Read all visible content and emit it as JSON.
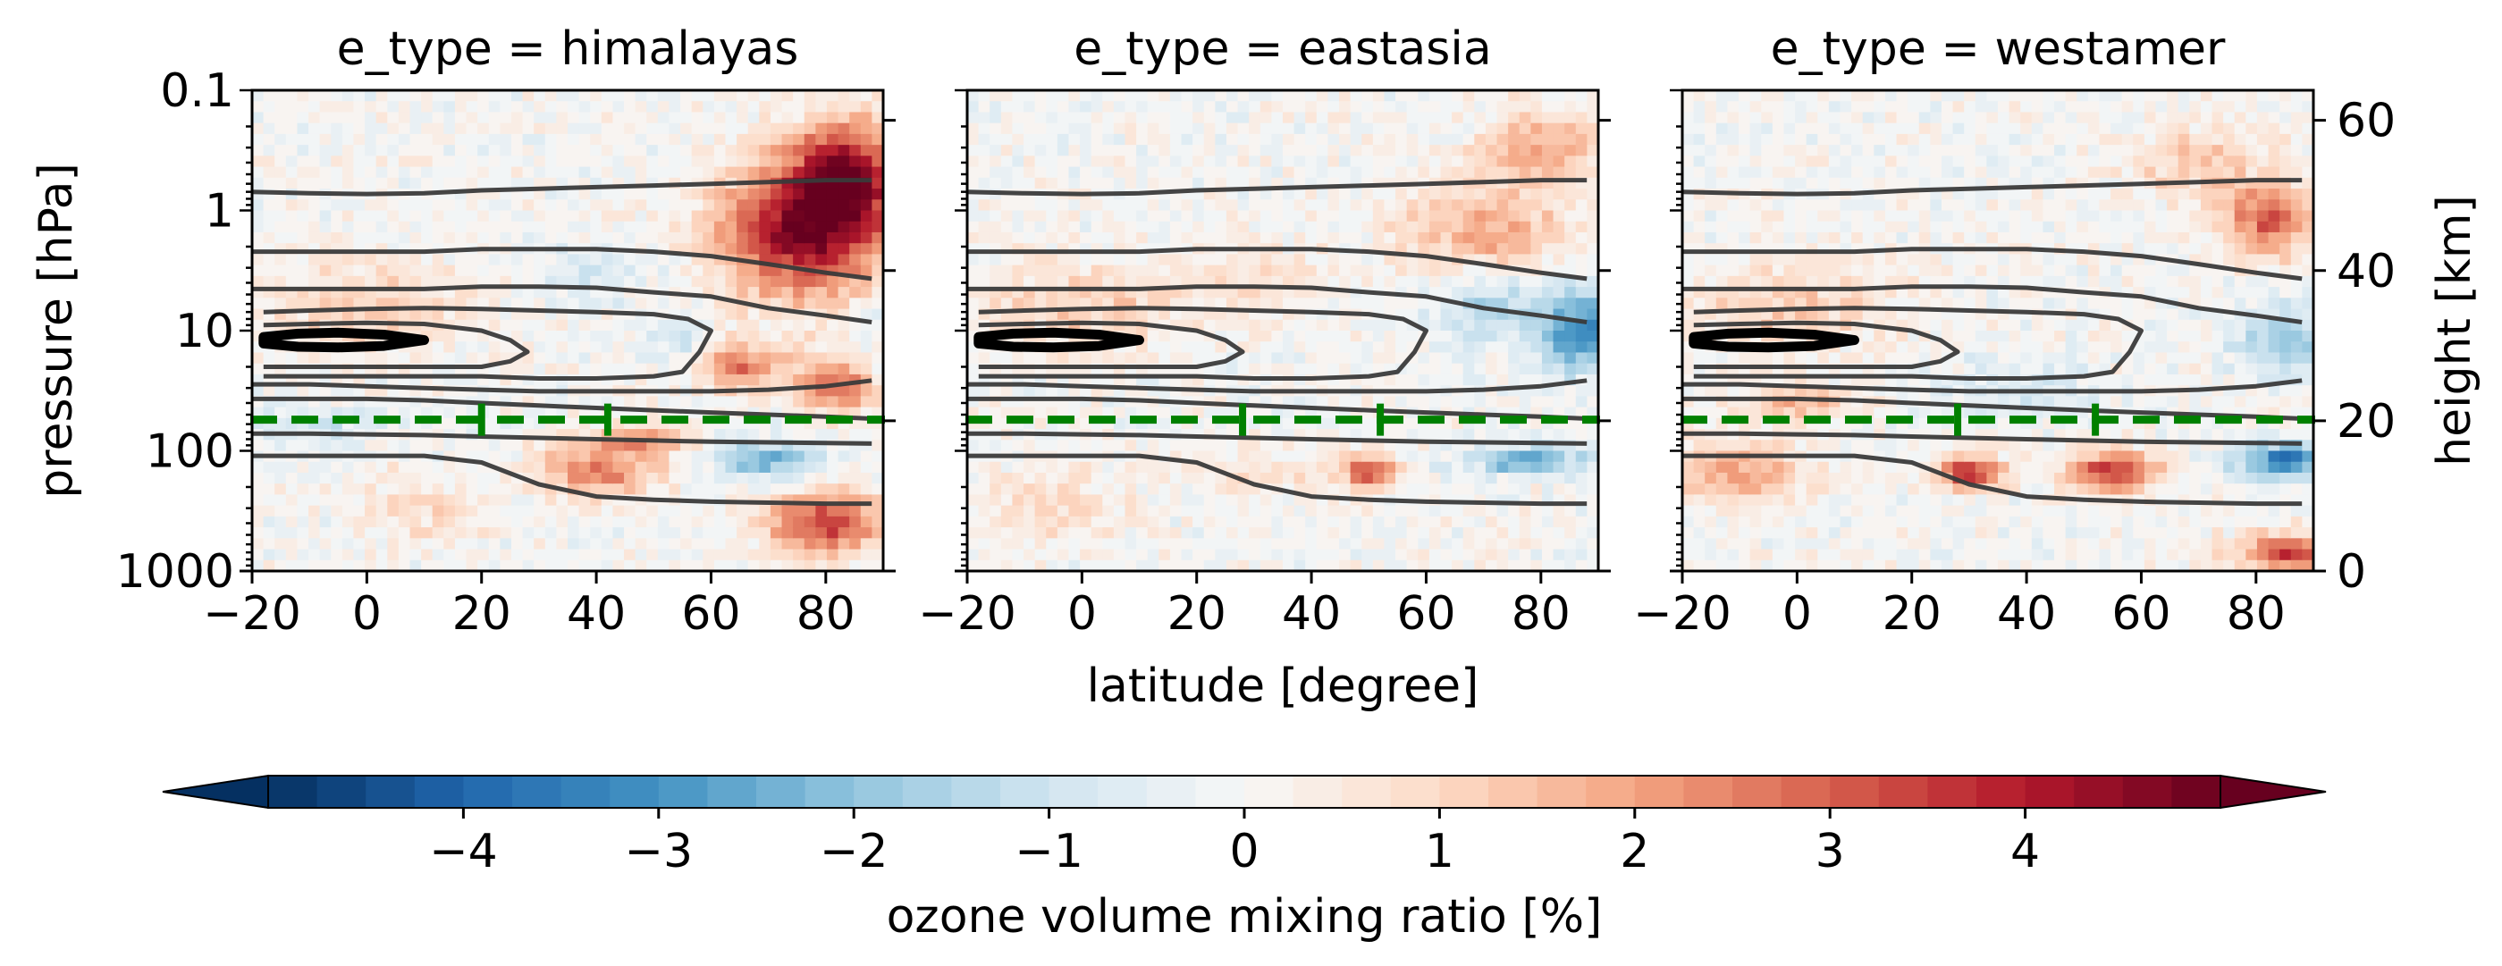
{
  "chart_data": {
    "type": "heatmap",
    "panels": [
      {
        "title": "e_type = himalayas",
        "tropopause_markers_lat": [
          20,
          42
        ],
        "hotspots": [
          {
            "lat": 76,
            "p": 1.5,
            "value": 4.5,
            "sx": 14,
            "sy": 0.55
          },
          {
            "lat": 84,
            "p": 0.5,
            "value": 3.8,
            "sx": 10,
            "sy": 0.45
          },
          {
            "lat": 65,
            "p": 20,
            "value": 2.6,
            "sx": 8,
            "sy": 0.2
          },
          {
            "lat": 82,
            "p": 30,
            "value": 2.8,
            "sx": 7,
            "sy": 0.22
          },
          {
            "lat": 40,
            "p": 150,
            "value": 2.5,
            "sx": 10,
            "sy": 0.22
          },
          {
            "lat": 48,
            "p": 80,
            "value": 2.0,
            "sx": 8,
            "sy": 0.15
          },
          {
            "lat": 70,
            "p": 120,
            "value": -2.4,
            "sx": 9,
            "sy": 0.15
          },
          {
            "lat": 80,
            "p": 400,
            "value": 3.5,
            "sx": 10,
            "sy": 0.25
          },
          {
            "lat": 0,
            "p": 6,
            "value": 1.2,
            "sx": 18,
            "sy": 0.35
          },
          {
            "lat": 38,
            "p": 3,
            "value": -0.8,
            "sx": 10,
            "sy": 0.25
          },
          {
            "lat": 55,
            "p": 12,
            "value": -1.0,
            "sx": 6,
            "sy": 0.2
          },
          {
            "lat": -10,
            "p": 60,
            "value": -1.0,
            "sx": 12,
            "sy": 0.15
          },
          {
            "lat": 88,
            "p": 8,
            "value": -0.9,
            "sx": 4,
            "sy": 0.2
          },
          {
            "lat": 10,
            "p": 300,
            "value": 0.8,
            "sx": 12,
            "sy": 0.3
          }
        ]
      },
      {
        "title": "e_type = eastasia",
        "tropopause_markers_lat": [
          28,
          52
        ],
        "hotspots": [
          {
            "lat": 70,
            "p": 1.5,
            "value": 2.0,
            "sx": 14,
            "sy": 0.4
          },
          {
            "lat": 80,
            "p": 0.3,
            "value": 1.8,
            "sx": 10,
            "sy": 0.3
          },
          {
            "lat": 87,
            "p": 10,
            "value": -3.2,
            "sx": 7,
            "sy": 0.35
          },
          {
            "lat": 70,
            "p": 6,
            "value": -1.6,
            "sx": 10,
            "sy": 0.35
          },
          {
            "lat": 50,
            "p": 150,
            "value": 3.0,
            "sx": 5,
            "sy": 0.15
          },
          {
            "lat": 78,
            "p": 120,
            "value": -2.8,
            "sx": 10,
            "sy": 0.12
          },
          {
            "lat": 30,
            "p": 150,
            "value": 0.8,
            "sx": 12,
            "sy": 0.2
          },
          {
            "lat": -5,
            "p": 300,
            "value": 0.8,
            "sx": 14,
            "sy": 0.3
          },
          {
            "lat": 0,
            "p": 6,
            "value": 1.2,
            "sx": 18,
            "sy": 0.35
          },
          {
            "lat": 30,
            "p": 4,
            "value": 0.8,
            "sx": 12,
            "sy": 0.3
          }
        ]
      },
      {
        "title": "e_type = westamer",
        "tropopause_markers_lat": [
          28,
          52
        ],
        "hotspots": [
          {
            "lat": 82,
            "p": 1.2,
            "value": 3.0,
            "sx": 8,
            "sy": 0.3
          },
          {
            "lat": 70,
            "p": 0.4,
            "value": 1.2,
            "sx": 12,
            "sy": 0.3
          },
          {
            "lat": 85,
            "p": 12,
            "value": -2.0,
            "sx": 8,
            "sy": 0.3
          },
          {
            "lat": 30,
            "p": 150,
            "value": 3.6,
            "sx": 6,
            "sy": 0.15
          },
          {
            "lat": 55,
            "p": 150,
            "value": 3.4,
            "sx": 8,
            "sy": 0.18
          },
          {
            "lat": 85,
            "p": 120,
            "value": -3.5,
            "sx": 8,
            "sy": 0.15
          },
          {
            "lat": 85,
            "p": 700,
            "value": 3.5,
            "sx": 8,
            "sy": 0.15
          },
          {
            "lat": -10,
            "p": 150,
            "value": 2.0,
            "sx": 12,
            "sy": 0.25
          },
          {
            "lat": 0,
            "p": 40,
            "value": 1.8,
            "sx": 10,
            "sy": 0.15
          },
          {
            "lat": 0,
            "p": 6,
            "value": 1.2,
            "sx": 18,
            "sy": 0.35
          },
          {
            "lat": 40,
            "p": 30,
            "value": -0.8,
            "sx": 14,
            "sy": 0.25
          }
        ]
      }
    ],
    "xlabel": "latitude [degree]",
    "ylabel": "pressure [hPa]",
    "ylabel_right": "height [km]",
    "colorbar_label": "ozone volume mixing ratio [%]",
    "xticks": [
      -20,
      0,
      20,
      40,
      60,
      80
    ],
    "xtick_labels": [
      "−20",
      "0",
      "20",
      "40",
      "60",
      "80"
    ],
    "xlim": [
      -20,
      90
    ],
    "yticks": [
      0.1,
      1,
      10,
      100,
      1000
    ],
    "ytick_labels": [
      "0.1",
      "1",
      "10",
      "100",
      "1000"
    ],
    "ylim": [
      1000,
      0.1
    ],
    "y_scale": "log",
    "height_ticks": [
      0,
      20,
      40,
      60
    ],
    "height_tick_labels": [
      "0",
      "20",
      "40",
      "60"
    ],
    "colorbar_ticks": [
      -4,
      -3,
      -2,
      -1,
      0,
      1,
      2,
      3,
      4
    ],
    "colorbar_tick_labels": [
      "−4",
      "−3",
      "−2",
      "−1",
      "0",
      "1",
      "2",
      "3",
      "4"
    ],
    "colorbar_range": [
      -5,
      5
    ],
    "colormap": "RdBu_r",
    "tropopause_pressure": 55,
    "tropopause_color": "#008000",
    "contours_lat": [
      -20,
      -10,
      0,
      10,
      20,
      30,
      40,
      50,
      60,
      70,
      80,
      88
    ],
    "contours": [
      {
        "p": [
          0.7,
          0.72,
          0.73,
          0.72,
          0.68,
          0.66,
          0.64,
          0.62,
          0.6,
          0.58,
          0.56,
          0.56
        ]
      },
      {
        "p": [
          2.2,
          2.2,
          2.2,
          2.2,
          2.1,
          2.1,
          2.1,
          2.2,
          2.4,
          2.8,
          3.3,
          3.7
        ]
      },
      {
        "p": [
          4.5,
          4.5,
          4.5,
          4.5,
          4.3,
          4.3,
          4.4,
          4.8,
          5.2,
          6.5,
          7.5,
          8.5
        ]
      },
      {
        "lat": [
          -18,
          -10,
          0,
          10,
          20,
          30,
          40,
          50,
          56,
          60,
          58,
          55,
          50,
          40,
          30,
          20,
          10,
          0,
          -10,
          -18
        ],
        "p": [
          7,
          6.8,
          6.6,
          6.5,
          6.6,
          6.8,
          7,
          7.3,
          8,
          10,
          15,
          22,
          24,
          25,
          25,
          24,
          24,
          24,
          24,
          24
        ]
      },
      {
        "lat": [
          -18,
          -10,
          0,
          10,
          20,
          25,
          28,
          25,
          20,
          10,
          0,
          -10,
          -18
        ],
        "p": [
          9,
          8.8,
          8.6,
          8.8,
          10,
          12,
          15,
          18,
          20,
          20,
          20,
          20,
          20
        ]
      },
      {
        "p": [
          28,
          28,
          29,
          30,
          31,
          32,
          32,
          32,
          32,
          31,
          29,
          26
        ]
      },
      {
        "p": [
          37,
          37,
          37,
          38,
          40,
          42,
          44,
          46,
          48,
          50,
          52,
          54
        ]
      },
      {
        "p": [
          72,
          72,
          73,
          74,
          76,
          78,
          80,
          82,
          84,
          85,
          86,
          87
        ]
      },
      {
        "p": [
          110,
          110,
          110,
          110,
          125,
          190,
          240,
          255,
          265,
          270,
          275,
          275
        ]
      }
    ],
    "thick_contour": {
      "lat": [
        -18,
        -12,
        -5,
        3,
        10,
        3,
        -5,
        -12,
        -18
      ],
      "p": [
        11.3,
        10.6,
        10.4,
        10.8,
        12,
        13.4,
        13.8,
        13.6,
        12.8
      ]
    }
  }
}
